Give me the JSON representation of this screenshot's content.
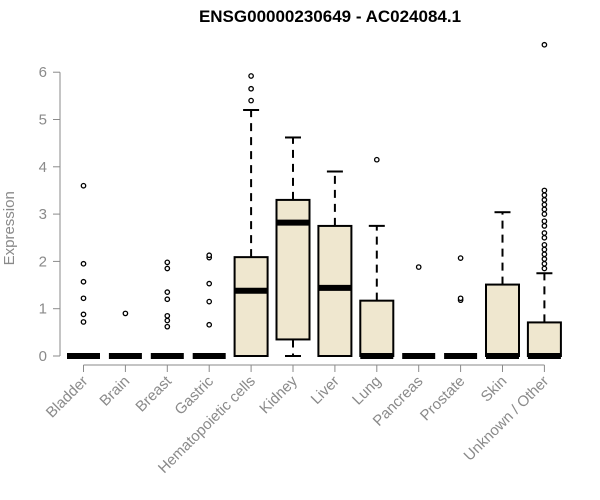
{
  "chart_data": {
    "type": "boxplot",
    "title": "ENSG00000230649 - AC024084.1",
    "xlabel": "",
    "ylabel": "Expression",
    "ylim": [
      0,
      6.6
    ],
    "yticks": [
      0,
      1,
      2,
      3,
      4,
      5,
      6
    ],
    "grid": false,
    "colors": {
      "box_fill": "#efe7cf",
      "stroke": "#000000",
      "axis": "#8a8a8a"
    },
    "categories": [
      "Bladder",
      "Brain",
      "Breast",
      "Gastric",
      "Hematopoietic cells",
      "Kidney",
      "Liver",
      "Lung",
      "Pancreas",
      "Prostate",
      "Skin",
      "Unknown / Other"
    ],
    "boxes": [
      {
        "q1": 0,
        "median": 0,
        "q3": 0,
        "whisker_low": 0,
        "whisker_high": 0,
        "outliers": [
          0.72,
          0.88,
          1.22,
          1.57,
          1.95,
          3.6
        ]
      },
      {
        "q1": 0,
        "median": 0,
        "q3": 0,
        "whisker_low": 0,
        "whisker_high": 0,
        "outliers": [
          0.9
        ]
      },
      {
        "q1": 0,
        "median": 0,
        "q3": 0,
        "whisker_low": 0,
        "whisker_high": 0,
        "outliers": [
          0.62,
          0.75,
          0.85,
          1.2,
          1.35,
          1.85,
          1.98
        ]
      },
      {
        "q1": 0,
        "median": 0,
        "q3": 0,
        "whisker_low": 0,
        "whisker_high": 0,
        "outliers": [
          0.66,
          1.15,
          1.53,
          2.08,
          2.13
        ]
      },
      {
        "q1": 0,
        "median": 1.38,
        "q3": 2.09,
        "whisker_low": 0,
        "whisker_high": 5.2,
        "outliers": [
          5.4,
          5.65,
          5.92
        ]
      },
      {
        "q1": 0.35,
        "median": 2.82,
        "q3": 3.3,
        "whisker_low": 0,
        "whisker_high": 4.62,
        "outliers": []
      },
      {
        "q1": 0,
        "median": 1.44,
        "q3": 2.75,
        "whisker_low": 0,
        "whisker_high": 3.9,
        "outliers": []
      },
      {
        "q1": 0,
        "median": 0,
        "q3": 1.17,
        "whisker_low": 0,
        "whisker_high": 2.75,
        "outliers": [
          4.15
        ]
      },
      {
        "q1": 0,
        "median": 0,
        "q3": 0,
        "whisker_low": 0,
        "whisker_high": 0,
        "outliers": [
          1.88
        ]
      },
      {
        "q1": 0,
        "median": 0,
        "q3": 0,
        "whisker_low": 0,
        "whisker_high": 0,
        "outliers": [
          1.18,
          1.22,
          2.07
        ]
      },
      {
        "q1": 0,
        "median": 0,
        "q3": 1.51,
        "whisker_low": 0,
        "whisker_high": 3.04,
        "outliers": []
      },
      {
        "q1": 0,
        "median": 0,
        "q3": 0.71,
        "whisker_low": 0,
        "whisker_high": 1.75,
        "outliers": [
          1.85,
          1.95,
          2.05,
          2.15,
          2.25,
          2.35,
          2.5,
          2.6,
          2.75,
          2.85,
          3.0,
          3.1,
          3.2,
          3.3,
          3.4,
          3.5,
          6.58
        ]
      }
    ]
  }
}
